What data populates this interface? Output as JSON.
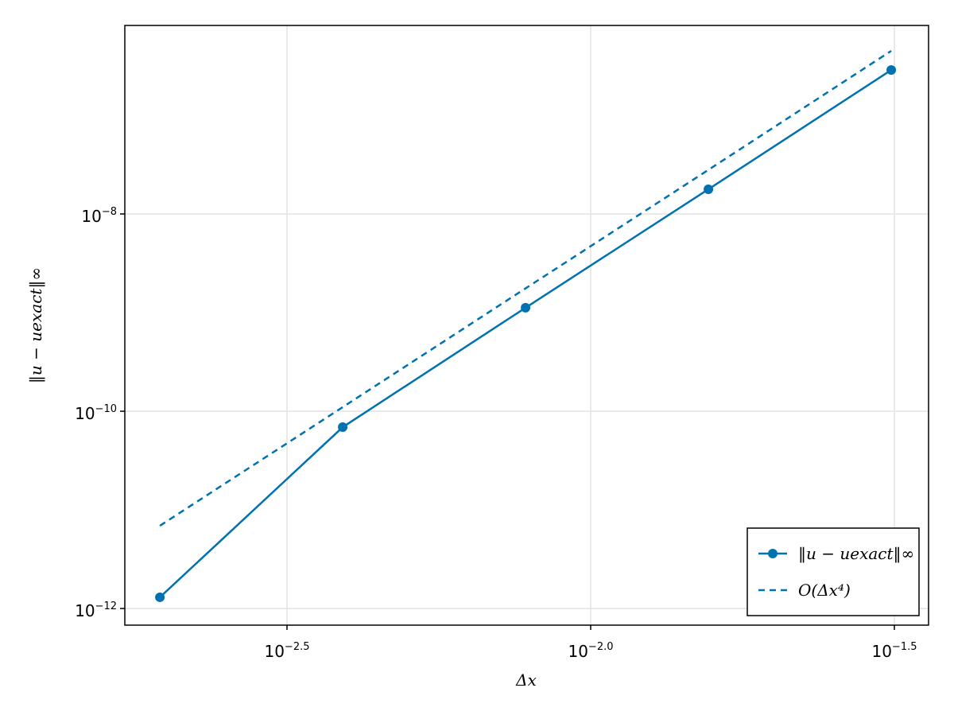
{
  "chart_data": {
    "type": "line",
    "xlabel": "Δx",
    "ylabel": "‖u − uexact‖∞",
    "x": [
      0.001953125,
      0.00390625,
      0.0078125,
      0.015625,
      0.03125
    ],
    "series": [
      {
        "name": "‖u − uexact‖∞",
        "color": "#0072b2",
        "line_style": "solid",
        "marker": true,
        "values": [
          1.3e-12,
          6.9e-11,
          1.12e-09,
          1.78e-08,
          2.88e-07
        ]
      },
      {
        "name": "O(Δx⁴)",
        "color": "#0072b2",
        "line_style": "dashed",
        "marker": false,
        "values": [
          6.9e-12,
          1.1e-10,
          1.76e-09,
          2.8e-08,
          4.5e-07
        ]
      }
    ],
    "xscale": "log",
    "yscale": "log",
    "xlim": [
      0.00171,
      0.036
    ],
    "ylim": [
      6.78e-13,
      8.15e-07
    ],
    "xticks": [
      {
        "value": 0.0031622776601683794,
        "label": "10",
        "exponent": "−2.5"
      },
      {
        "value": 0.01,
        "label": "10",
        "exponent": "−2.0"
      },
      {
        "value": 0.03162277660168379,
        "label": "10",
        "exponent": "−1.5"
      }
    ],
    "yticks": [
      {
        "value": 1e-12,
        "label": "10",
        "exponent": "−12"
      },
      {
        "value": 1e-10,
        "label": "10",
        "exponent": "−10"
      },
      {
        "value": 1e-08,
        "label": "10",
        "exponent": "−8"
      }
    ],
    "grid": true,
    "legend": "lower-right"
  }
}
